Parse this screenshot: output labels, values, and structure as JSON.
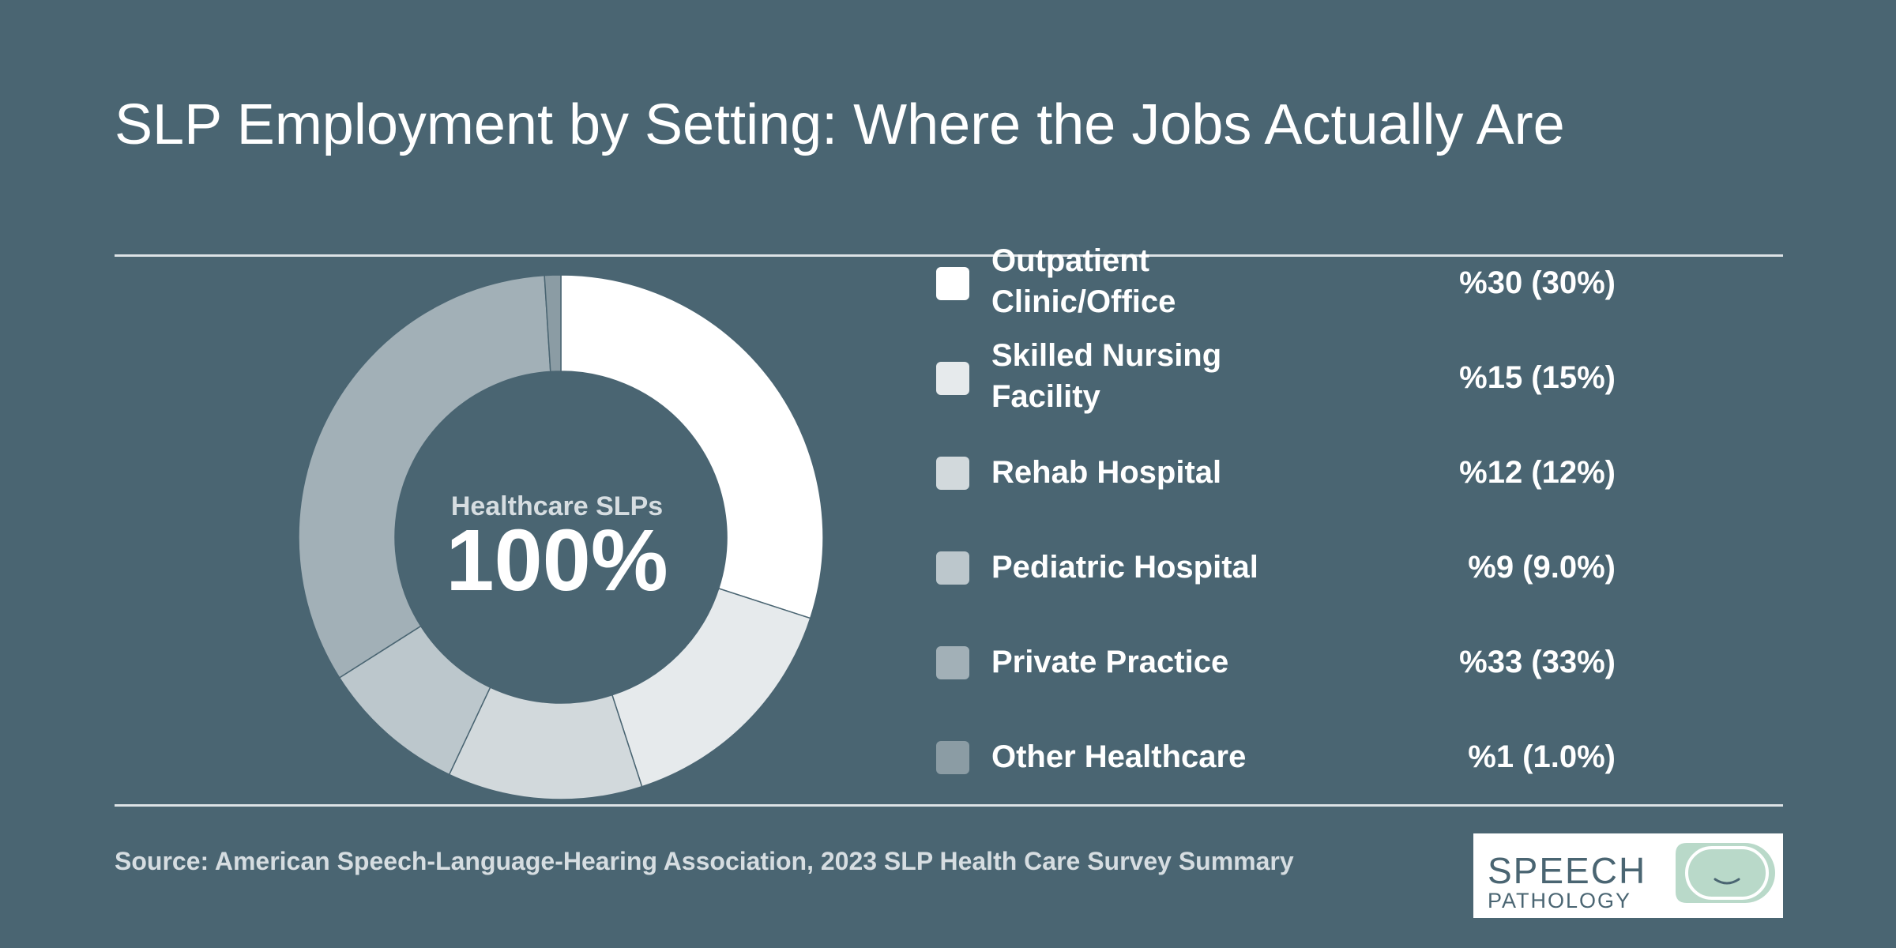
{
  "title": "SLP Employment by Setting: Where the Jobs Actually Are",
  "center": {
    "label": "Healthcare SLPs",
    "value": "100%"
  },
  "source": "Source: American Speech-Language-Hearing Association, 2023 SLP Health Care Survey Summary",
  "logo": {
    "line1": "SPEECH",
    "line2": "PATHOLOGY"
  },
  "legend": [
    {
      "label": "Outpatient Clinic/Office",
      "value": "%30 (30%)",
      "color": "#ffffff"
    },
    {
      "label": "Skilled Nursing Facility",
      "value": "%15 (15%)",
      "color": "#e6eaec"
    },
    {
      "label": "Rehab Hospital",
      "value": "%12 (12%)",
      "color": "#d2d9dc"
    },
    {
      "label": "Pediatric Hospital",
      "value": "%9 (9.0%)",
      "color": "#bcc7cc"
    },
    {
      "label": "Private Practice",
      "value": "%33 (33%)",
      "color": "#a2b0b7"
    },
    {
      "label": "Other Healthcare",
      "value": "%1 (1.0%)",
      "color": "#8b9ca4"
    }
  ],
  "chart_data": {
    "type": "pie",
    "categories": [
      "Outpatient Clinic/Office",
      "Skilled Nursing Facility",
      "Rehab Hospital",
      "Pediatric Hospital",
      "Private Practice",
      "Other Healthcare"
    ],
    "values": [
      30,
      15,
      12,
      9,
      33,
      1
    ],
    "colors": [
      "#ffffff",
      "#e6eaec",
      "#d2d9dc",
      "#bcc7cc",
      "#a2b0b7",
      "#8b9ca4"
    ],
    "donut": true,
    "title": "SLP Employment by Setting: Where the Jobs Actually Are"
  }
}
